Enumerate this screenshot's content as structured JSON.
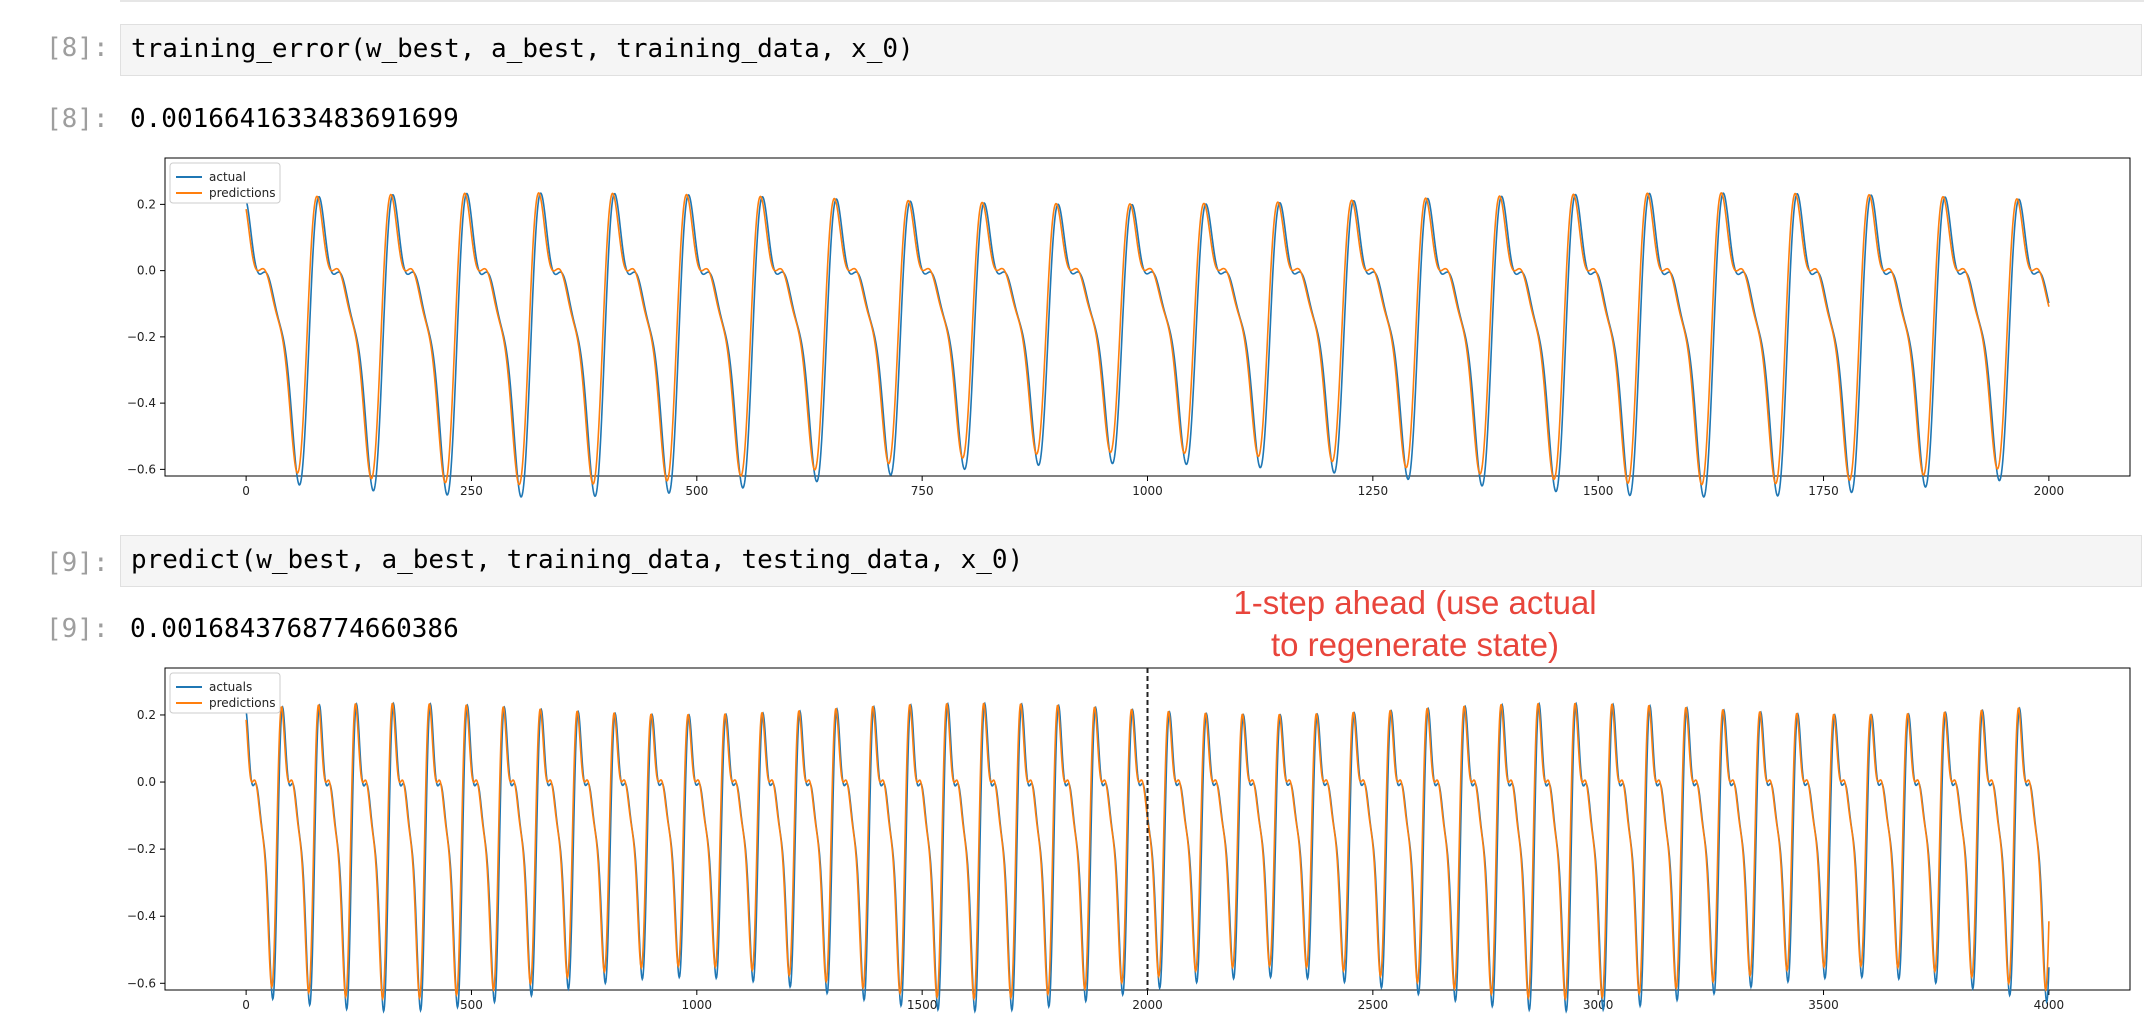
{
  "cells": [
    {
      "input_prompt": "[8]:",
      "code": "training_error(w_best, a_best, training_data, x_0)",
      "output_prompt": "[8]:",
      "output_value": "0.0016641633483691699"
    },
    {
      "input_prompt": "[9]:",
      "code": "predict(w_best, a_best, training_data, testing_data, x_0)",
      "output_prompt": "[9]:",
      "output_value": "0.0016843768774660386"
    }
  ],
  "annotation": {
    "line1": "1-step ahead (use actual",
    "line2": "to regenerate state)",
    "color": "#e8453c"
  },
  "chart_data": [
    {
      "type": "line",
      "x_range": [
        0,
        2000
      ],
      "xticks": [
        0,
        250,
        500,
        750,
        1000,
        1250,
        1500,
        1750,
        2000
      ],
      "xtick_labels": [
        "0",
        "250",
        "500",
        "750",
        "1000",
        "1250",
        "1500",
        "1750",
        "2000"
      ],
      "yticks": [
        0.2,
        0.0,
        -0.2,
        -0.4,
        -0.6
      ],
      "ytick_labels": [
        "0.2",
        "0.0",
        "−0.2",
        "−0.4",
        "−0.6"
      ],
      "ylim": [
        -0.62,
        0.34
      ],
      "legend": "top-left",
      "grid": false,
      "period": 82,
      "series": [
        {
          "name": "actual",
          "color": "#1f77b4",
          "amplitude": 1.0,
          "phase_shift": 0
        },
        {
          "name": "predictions",
          "color": "#ff7f0e",
          "amplitude": 0.96,
          "phase_shift": 2.2
        }
      ]
    },
    {
      "type": "line",
      "x_range": [
        0,
        4000
      ],
      "xticks": [
        0,
        500,
        1000,
        1500,
        2000,
        2500,
        3000,
        3500,
        4000
      ],
      "xtick_labels": [
        "0",
        "500",
        "1000",
        "1500",
        "2000",
        "2500",
        "3000",
        "3500",
        "4000"
      ],
      "yticks": [
        0.2,
        0.0,
        -0.2,
        -0.4,
        -0.6
      ],
      "ytick_labels": [
        "0.2",
        "0.0",
        "−0.2",
        "−0.4",
        "−0.6"
      ],
      "ylim": [
        -0.62,
        0.34
      ],
      "legend": "top-left",
      "grid": false,
      "period": 82,
      "vline_x": 2000,
      "series": [
        {
          "name": "actuals",
          "color": "#1f77b4",
          "amplitude": 1.0,
          "phase_shift": 0
        },
        {
          "name": "predictions",
          "color": "#ff7f0e",
          "amplitude": 0.96,
          "phase_shift": 2.2
        }
      ]
    }
  ]
}
